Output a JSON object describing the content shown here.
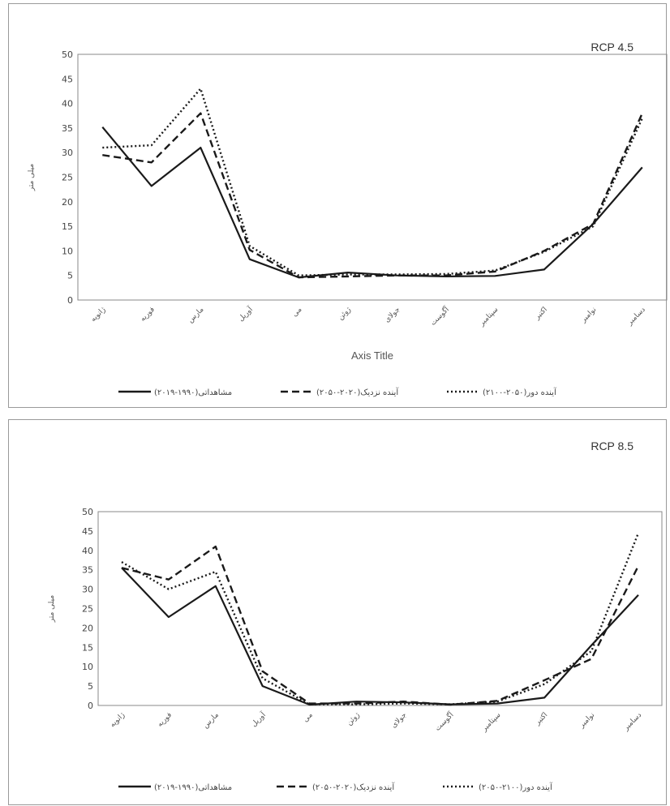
{
  "colors": {
    "line": "#1a1a1a",
    "axis": "#888888",
    "frame": "#9a9a9a"
  },
  "chart_data": [
    {
      "type": "line",
      "title": "RCP 4.5",
      "xlabel": "Axis Title",
      "ylabel": "میلی متر",
      "ylim": [
        0,
        50
      ],
      "yticks": [
        0,
        5,
        10,
        15,
        20,
        25,
        30,
        35,
        40,
        45,
        50
      ],
      "grid": false,
      "legend_position": "bottom",
      "categories": [
        "ژانویه",
        "فوریه",
        "مارس",
        "آوریل",
        "می",
        "ژوئن",
        "جولای",
        "آگوست",
        "سپتامبر",
        "اکتبر",
        "نوامبر",
        "دسامبر"
      ],
      "series": [
        {
          "name": "مشاهداتی(۱۹۹۰-۲۰۱۹)",
          "style": "solid",
          "values": [
            35.2,
            23.2,
            31.0,
            8.3,
            4.6,
            5.6,
            5.0,
            4.8,
            4.9,
            6.2,
            15.5,
            27.0
          ]
        },
        {
          "name": "آینده نزدیک(۲۰۲۰-۲۰۵۰)",
          "style": "dashed",
          "values": [
            29.5,
            28.0,
            38.0,
            10.2,
            4.6,
            4.8,
            5.0,
            5.0,
            5.8,
            10.0,
            15.5,
            38.0
          ]
        },
        {
          "name": "آینده دور(۲۰۵۰-۲۱۰۰)",
          "style": "dotted",
          "values": [
            31.0,
            31.5,
            43.0,
            11.0,
            5.0,
            5.2,
            5.2,
            5.3,
            6.0,
            9.8,
            15.0,
            37.0
          ]
        }
      ]
    },
    {
      "type": "line",
      "title": "RCP 8.5",
      "xlabel": "",
      "ylabel": "میلی متر",
      "ylim": [
        0,
        50
      ],
      "yticks": [
        0,
        5,
        10,
        15,
        20,
        25,
        30,
        35,
        40,
        45,
        50
      ],
      "grid": false,
      "legend_position": "bottom",
      "categories": [
        "ژانویه",
        "فوریه",
        "مارس",
        "آوریل",
        "می",
        "ژوئن",
        "جولای",
        "آگوست",
        "سپتامبر",
        "اکتبر",
        "نوامبر",
        "دسامبر"
      ],
      "series": [
        {
          "name": "مشاهداتی(۱۹۹۰-۲۰۱۹)",
          "style": "solid",
          "values": [
            35.5,
            22.8,
            30.8,
            5.0,
            0.2,
            1.0,
            0.8,
            0.3,
            0.5,
            2.0,
            15.5,
            28.5
          ]
        },
        {
          "name": "آینده نزدیک(۲۰۲۰-۲۰۵۰)",
          "style": "dashed",
          "values": [
            35.5,
            32.5,
            41.0,
            8.8,
            0.5,
            0.5,
            1.0,
            0.2,
            1.2,
            6.5,
            12.0,
            36.0
          ]
        },
        {
          "name": "آینده دور(۲۱۰۰-۲۰۵۰)",
          "style": "dotted",
          "values": [
            37.0,
            30.0,
            34.5,
            7.0,
            0.3,
            0.3,
            0.5,
            0.3,
            1.0,
            5.5,
            14.0,
            44.5
          ]
        }
      ]
    }
  ]
}
